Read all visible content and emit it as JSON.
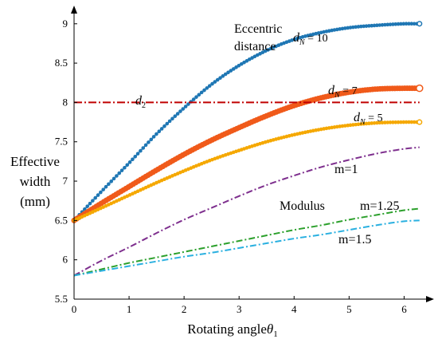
{
  "chart_data": {
    "type": "line",
    "xlabel_main": "Rotating angle",
    "xlabel_symbol": "θ",
    "xlabel_sub": "1",
    "ylabel_lines": [
      "Effective",
      "width",
      "(mm)"
    ],
    "xlim": [
      0,
      6.2832
    ],
    "ylim": [
      5.5,
      9.15
    ],
    "xticks": [
      "0",
      "1",
      "2",
      "3",
      "4",
      "5",
      "6"
    ],
    "yticks": [
      "5.5",
      "6",
      "6.5",
      "7",
      "7.5",
      "8",
      "8.5",
      "9"
    ],
    "annotations": {
      "eccentric_line1": "Eccentric",
      "eccentric_line2": "distance",
      "modulus": "Modulus",
      "d2": "d",
      "d2_sub": "2",
      "dN10": "d",
      "dN10_sub": "N",
      "dN10_val": " = 10",
      "dN7": "d",
      "dN7_sub": "N",
      "dN7_val": " = 7",
      "dN5": "d",
      "dN5_sub": "N",
      "dN5_val": " = 5",
      "m1": "m=1",
      "m125": "m=1.25",
      "m15": "m=1.5"
    },
    "series": [
      {
        "label": "dN = 10",
        "color": "#1f77b4",
        "style": "markers",
        "x": [
          0,
          0.5,
          1,
          1.5,
          2,
          2.5,
          3,
          3.5,
          4,
          4.5,
          5,
          5.5,
          6,
          6.28
        ],
        "y": [
          6.5,
          6.87,
          7.23,
          7.6,
          7.93,
          8.23,
          8.47,
          8.66,
          8.8,
          8.89,
          8.95,
          8.98,
          9.0,
          9.0
        ]
      },
      {
        "label": "dN = 7",
        "color": "#f05a1a",
        "style": "markers-thick",
        "x": [
          0,
          0.5,
          1,
          1.5,
          2,
          2.5,
          3,
          3.5,
          4,
          4.5,
          5,
          5.5,
          6,
          6.28
        ],
        "y": [
          6.5,
          6.72,
          6.93,
          7.14,
          7.34,
          7.52,
          7.68,
          7.83,
          7.96,
          8.06,
          8.13,
          8.17,
          8.18,
          8.18
        ]
      },
      {
        "label": "dN = 5",
        "color": "#f5a800",
        "style": "markers",
        "x": [
          0,
          0.5,
          1,
          1.5,
          2,
          2.5,
          3,
          3.5,
          4,
          4.5,
          5,
          5.5,
          6,
          6.28
        ],
        "y": [
          6.5,
          6.66,
          6.82,
          6.98,
          7.13,
          7.27,
          7.39,
          7.5,
          7.59,
          7.66,
          7.71,
          7.74,
          7.75,
          7.75
        ]
      },
      {
        "label": "m=1",
        "color": "#7e2f8e",
        "style": "dashdot",
        "x": [
          0,
          0.5,
          1,
          1.5,
          2,
          2.5,
          3,
          3.5,
          4,
          4.5,
          5,
          5.5,
          6,
          6.28
        ],
        "y": [
          5.8,
          5.99,
          6.16,
          6.34,
          6.51,
          6.66,
          6.81,
          6.95,
          7.07,
          7.18,
          7.27,
          7.35,
          7.41,
          7.43
        ]
      },
      {
        "label": "m=1.25",
        "color": "#2ca02c",
        "style": "dashdot",
        "x": [
          0,
          0.5,
          1,
          1.5,
          2,
          2.5,
          3,
          3.5,
          4,
          4.5,
          5,
          5.5,
          6,
          6.28
        ],
        "y": [
          5.8,
          5.88,
          5.96,
          6.03,
          6.1,
          6.17,
          6.24,
          6.31,
          6.38,
          6.44,
          6.51,
          6.57,
          6.63,
          6.65
        ]
      },
      {
        "label": "m=1.5",
        "color": "#2ab0e0",
        "style": "dashdot",
        "x": [
          0,
          0.5,
          1,
          1.5,
          2,
          2.5,
          3,
          3.5,
          4,
          4.5,
          5,
          5.5,
          6,
          6.28
        ],
        "y": [
          5.8,
          5.86,
          5.92,
          5.98,
          6.04,
          6.09,
          6.15,
          6.21,
          6.27,
          6.32,
          6.38,
          6.44,
          6.49,
          6.5
        ]
      },
      {
        "label": "d2",
        "color": "#c00000",
        "style": "dashdot-thick",
        "x": [
          0,
          6.28
        ],
        "y": [
          8.0,
          8.0
        ]
      }
    ]
  }
}
